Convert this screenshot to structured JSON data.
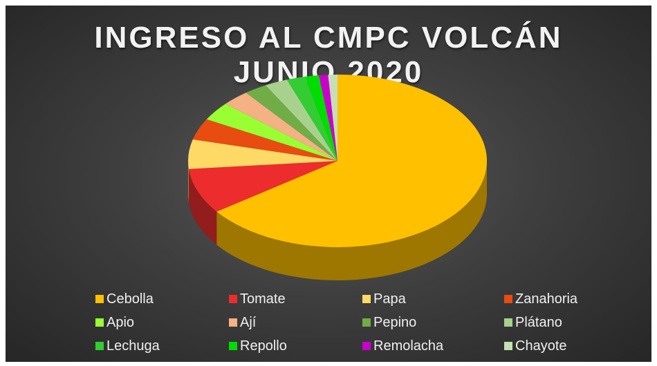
{
  "chart_data": {
    "type": "pie",
    "title_lines": [
      "INGRESO AL CMPC VOLCÁN",
      "JUNIO 2020"
    ],
    "categories": [
      "Cebolla",
      "Tomate",
      "Papa",
      "Zanahoria",
      "Apio",
      "Ají",
      "Pepino",
      "Plátano",
      "Lechuga",
      "Repollo",
      "Remolacha",
      "Chayote"
    ],
    "values": [
      65.0,
      8.5,
      5.5,
      4.0,
      3.5,
      3.0,
      2.5,
      2.5,
      2.0,
      1.5,
      1.0,
      1.0
    ],
    "colors": [
      "#FFC000",
      "#ED2D2D",
      "#FFD966",
      "#E84C10",
      "#99FF33",
      "#F4B183",
      "#70AD47",
      "#A9D18E",
      "#33CC33",
      "#00DD00",
      "#CC00CC",
      "#C5E0B4"
    ],
    "legend_position": "bottom",
    "style": "3d"
  }
}
